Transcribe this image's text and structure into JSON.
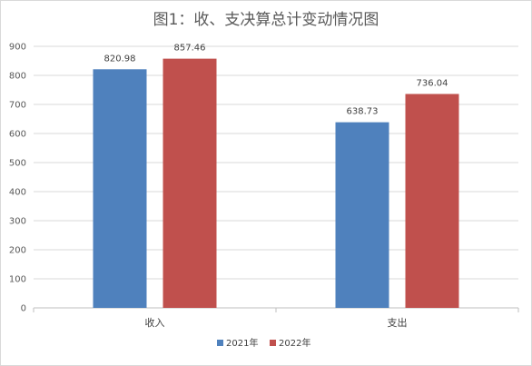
{
  "chart_data": {
    "type": "bar",
    "title": "图1：收、支决算总计变动情况图",
    "categories": [
      "收入",
      "支出"
    ],
    "series": [
      {
        "name": "2021年",
        "values": [
          820.98,
          638.73
        ],
        "labels": [
          "820.98",
          "638.73"
        ],
        "color": "#4f81bd"
      },
      {
        "name": "2022年",
        "values": [
          857.46,
          736.04
        ],
        "labels": [
          "857.46",
          "736.04"
        ],
        "color": "#c0504d"
      }
    ],
    "ylim": [
      0,
      900
    ],
    "yticks": [
      0,
      100,
      200,
      300,
      400,
      500,
      600,
      700,
      800,
      900
    ],
    "grid": true,
    "legend": "bottom",
    "xlabel": "",
    "ylabel": ""
  }
}
